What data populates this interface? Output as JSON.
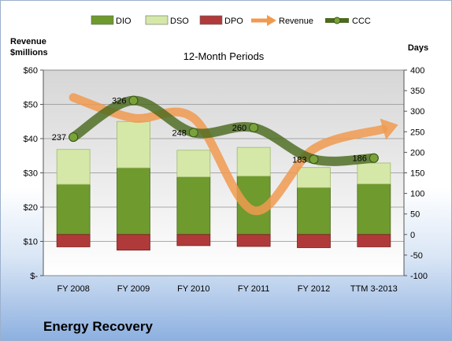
{
  "company_name": "Energy Recovery",
  "chart_data": {
    "type": "bar",
    "title": "12-Month Periods",
    "ylabel_left": "Revenue\n$millions",
    "ylabel_right": "Days",
    "categories": [
      "FY 2008",
      "FY 2009",
      "FY 2010",
      "FY 2011",
      "FY 2012",
      "TTM 3-2013"
    ],
    "left_axis": {
      "min": 0,
      "max": 60,
      "ticks": [
        "$-",
        "$10",
        "$20",
        "$30",
        "$40",
        "$50",
        "$60"
      ]
    },
    "right_axis": {
      "min": -100,
      "max": 400,
      "ticks": [
        "-100",
        "-50",
        "0",
        "50",
        "100",
        "150",
        "200",
        "250",
        "300",
        "350",
        "400"
      ]
    },
    "grid": true,
    "legend_position": "top",
    "series": [
      {
        "name": "DIO",
        "axis": "right",
        "kind": "stacked-bar",
        "color": "#6f9a2e",
        "values": [
          122,
          162,
          140,
          142,
          114,
          123
        ]
      },
      {
        "name": "DSO",
        "axis": "right",
        "kind": "stacked-bar",
        "color": "#d5e8a8",
        "values": [
          85,
          113,
          65,
          70,
          49,
          51
        ]
      },
      {
        "name": "DPO",
        "axis": "right",
        "kind": "negative-bar",
        "color": "#b03a3a",
        "values": [
          -30,
          -38,
          -27,
          -29,
          -32,
          -30
        ]
      },
      {
        "name": "Revenue",
        "axis": "left",
        "kind": "line-arrow",
        "color": "#f09a50",
        "values": [
          52,
          46,
          46,
          19,
          37,
          42
        ]
      },
      {
        "name": "CCC",
        "axis": "right",
        "kind": "line",
        "color": "#4b6a1f",
        "values": [
          237,
          326,
          248,
          260,
          183,
          186
        ]
      }
    ],
    "data_labels": [
      "237",
      "326",
      "248",
      "260",
      "183",
      "186"
    ]
  }
}
